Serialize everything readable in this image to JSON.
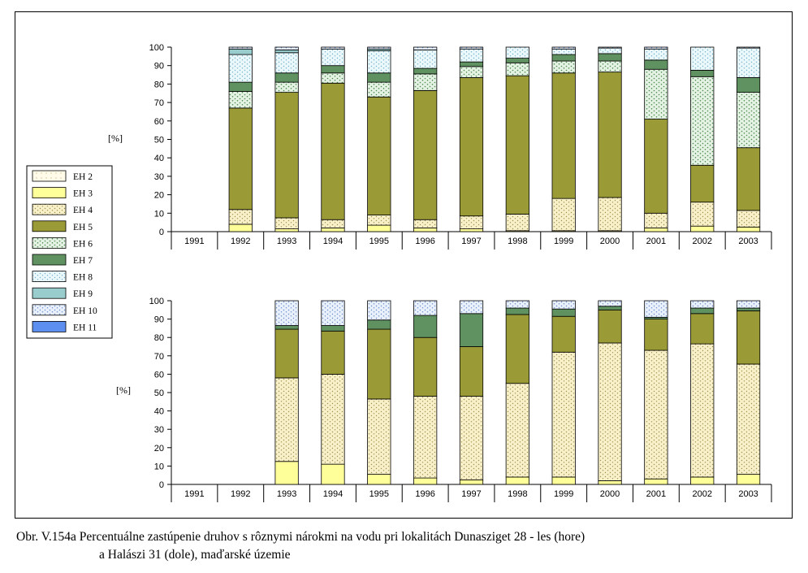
{
  "caption": {
    "line1": "Obr. V.154a Percentuálne zastúpenie druhov s rôznymi nárokmi na vodu pri lokalitách Dunasziget 28 - les (hore)",
    "line2": "a Halászi 31 (dole), maďarské územie"
  },
  "legend": [
    "EH 2",
    "EH 3",
    "EH 4",
    "EH 5",
    "EH 6",
    "EH 7",
    "EH 8",
    "EH 9",
    "EH 10",
    "EH 11"
  ],
  "colors": {
    "EH 2": "#fffbe8",
    "EH 3": "#ffff99",
    "EH 4": "#f8f0c8",
    "EH 5": "#9a9a36",
    "EH 6": "#e4f2e4",
    "EH 7": "#5f9260",
    "EH 8": "#eaf8fc",
    "EH 9": "#99cccc",
    "EH 10": "#e8f0fc",
    "EH 11": "#5d8ff0"
  },
  "chart_data": [
    {
      "type": "bar",
      "stacked": true,
      "ylabel": "[%]",
      "ylim": [
        0,
        100
      ],
      "yticks": [
        "0",
        "10",
        "20",
        "30",
        "40",
        "50",
        "60",
        "70",
        "80",
        "90",
        "100"
      ],
      "categories": [
        "1991",
        "1992",
        "1993",
        "1994",
        "1995",
        "1996",
        "1997",
        "1998",
        "1999",
        "2000",
        "2001",
        "2002",
        "2003"
      ],
      "series": [
        {
          "name": "EH 2",
          "values": [
            0,
            0,
            0,
            0,
            0,
            0,
            0,
            0,
            0,
            0,
            0,
            0,
            0
          ]
        },
        {
          "name": "EH 3",
          "values": [
            0,
            4,
            1.5,
            2,
            3.5,
            2,
            1.5,
            0.5,
            0.5,
            0.5,
            2,
            3,
            2.5
          ]
        },
        {
          "name": "EH 4",
          "values": [
            0,
            8,
            6,
            4.5,
            5.5,
            4.5,
            7,
            9,
            17.5,
            18,
            8,
            13,
            9
          ]
        },
        {
          "name": "EH 5",
          "values": [
            0,
            55,
            68,
            74,
            64,
            70,
            75,
            75,
            68,
            68,
            51,
            20,
            34
          ]
        },
        {
          "name": "EH 6",
          "values": [
            0,
            9,
            5.5,
            5.5,
            8,
            9,
            6,
            7,
            6.5,
            6,
            27,
            48,
            30
          ]
        },
        {
          "name": "EH 7",
          "values": [
            0,
            5,
            5,
            4,
            5,
            3,
            2.5,
            2.5,
            3.5,
            4,
            5,
            3.5,
            8
          ]
        },
        {
          "name": "EH 8",
          "values": [
            0,
            15,
            11,
            9,
            12,
            10,
            7,
            6,
            3,
            3,
            6,
            12.5,
            16
          ]
        },
        {
          "name": "EH 9",
          "values": [
            0,
            3,
            1.5,
            0,
            1,
            0,
            0,
            0,
            0,
            0,
            0,
            0,
            0
          ]
        },
        {
          "name": "EH 10",
          "values": [
            0,
            1,
            1.5,
            1,
            1,
            1.5,
            1,
            0,
            1,
            0.5,
            1,
            0,
            0.5
          ]
        },
        {
          "name": "EH 11",
          "values": [
            0,
            0,
            0,
            0,
            0,
            0,
            0,
            0,
            0,
            0,
            0,
            0,
            0
          ]
        }
      ]
    },
    {
      "type": "bar",
      "stacked": true,
      "ylabel": "[%]",
      "ylim": [
        0,
        100
      ],
      "yticks": [
        "0",
        "10",
        "20",
        "30",
        "40",
        "50",
        "60",
        "70",
        "80",
        "90",
        "100"
      ],
      "categories": [
        "1991",
        "1992",
        "1993",
        "1994",
        "1995",
        "1996",
        "1997",
        "1998",
        "1999",
        "2000",
        "2001",
        "2002",
        "2003"
      ],
      "series": [
        {
          "name": "EH 2",
          "values": [
            0,
            0,
            0,
            0,
            0,
            0,
            0,
            0,
            0,
            0,
            0,
            0,
            0
          ]
        },
        {
          "name": "EH 3",
          "values": [
            0,
            0,
            12.5,
            11,
            5.5,
            3.5,
            2.5,
            4,
            4,
            2,
            3,
            4,
            5.5
          ]
        },
        {
          "name": "EH 4",
          "values": [
            0,
            0,
            45.5,
            49,
            41,
            44.5,
            45.5,
            51,
            68,
            75,
            70,
            72.5,
            60
          ]
        },
        {
          "name": "EH 5",
          "values": [
            0,
            0,
            26.5,
            23.5,
            38,
            32,
            27,
            37.5,
            19.5,
            18,
            17,
            16.5,
            29
          ]
        },
        {
          "name": "EH 6",
          "values": [
            0,
            0,
            0,
            0,
            0,
            0,
            0,
            0,
            0,
            0,
            0,
            0,
            0
          ]
        },
        {
          "name": "EH 7",
          "values": [
            0,
            0,
            2,
            3,
            5,
            12,
            18,
            3.5,
            4,
            2,
            1,
            3,
            1.5
          ]
        },
        {
          "name": "EH 8",
          "values": [
            0,
            0,
            0,
            0,
            0,
            0,
            0,
            0,
            0,
            0,
            0,
            0,
            0
          ]
        },
        {
          "name": "EH 9",
          "values": [
            0,
            0,
            0,
            0,
            0,
            0,
            0,
            0,
            0,
            0,
            0,
            0,
            0
          ]
        },
        {
          "name": "EH 10",
          "values": [
            0,
            0,
            13.5,
            13.5,
            10.5,
            8,
            7,
            4,
            4.5,
            3,
            9,
            4,
            4
          ]
        },
        {
          "name": "EH 11",
          "values": [
            0,
            0,
            0,
            0,
            0,
            0,
            0,
            0,
            0,
            0,
            0,
            0,
            0
          ]
        }
      ]
    }
  ]
}
